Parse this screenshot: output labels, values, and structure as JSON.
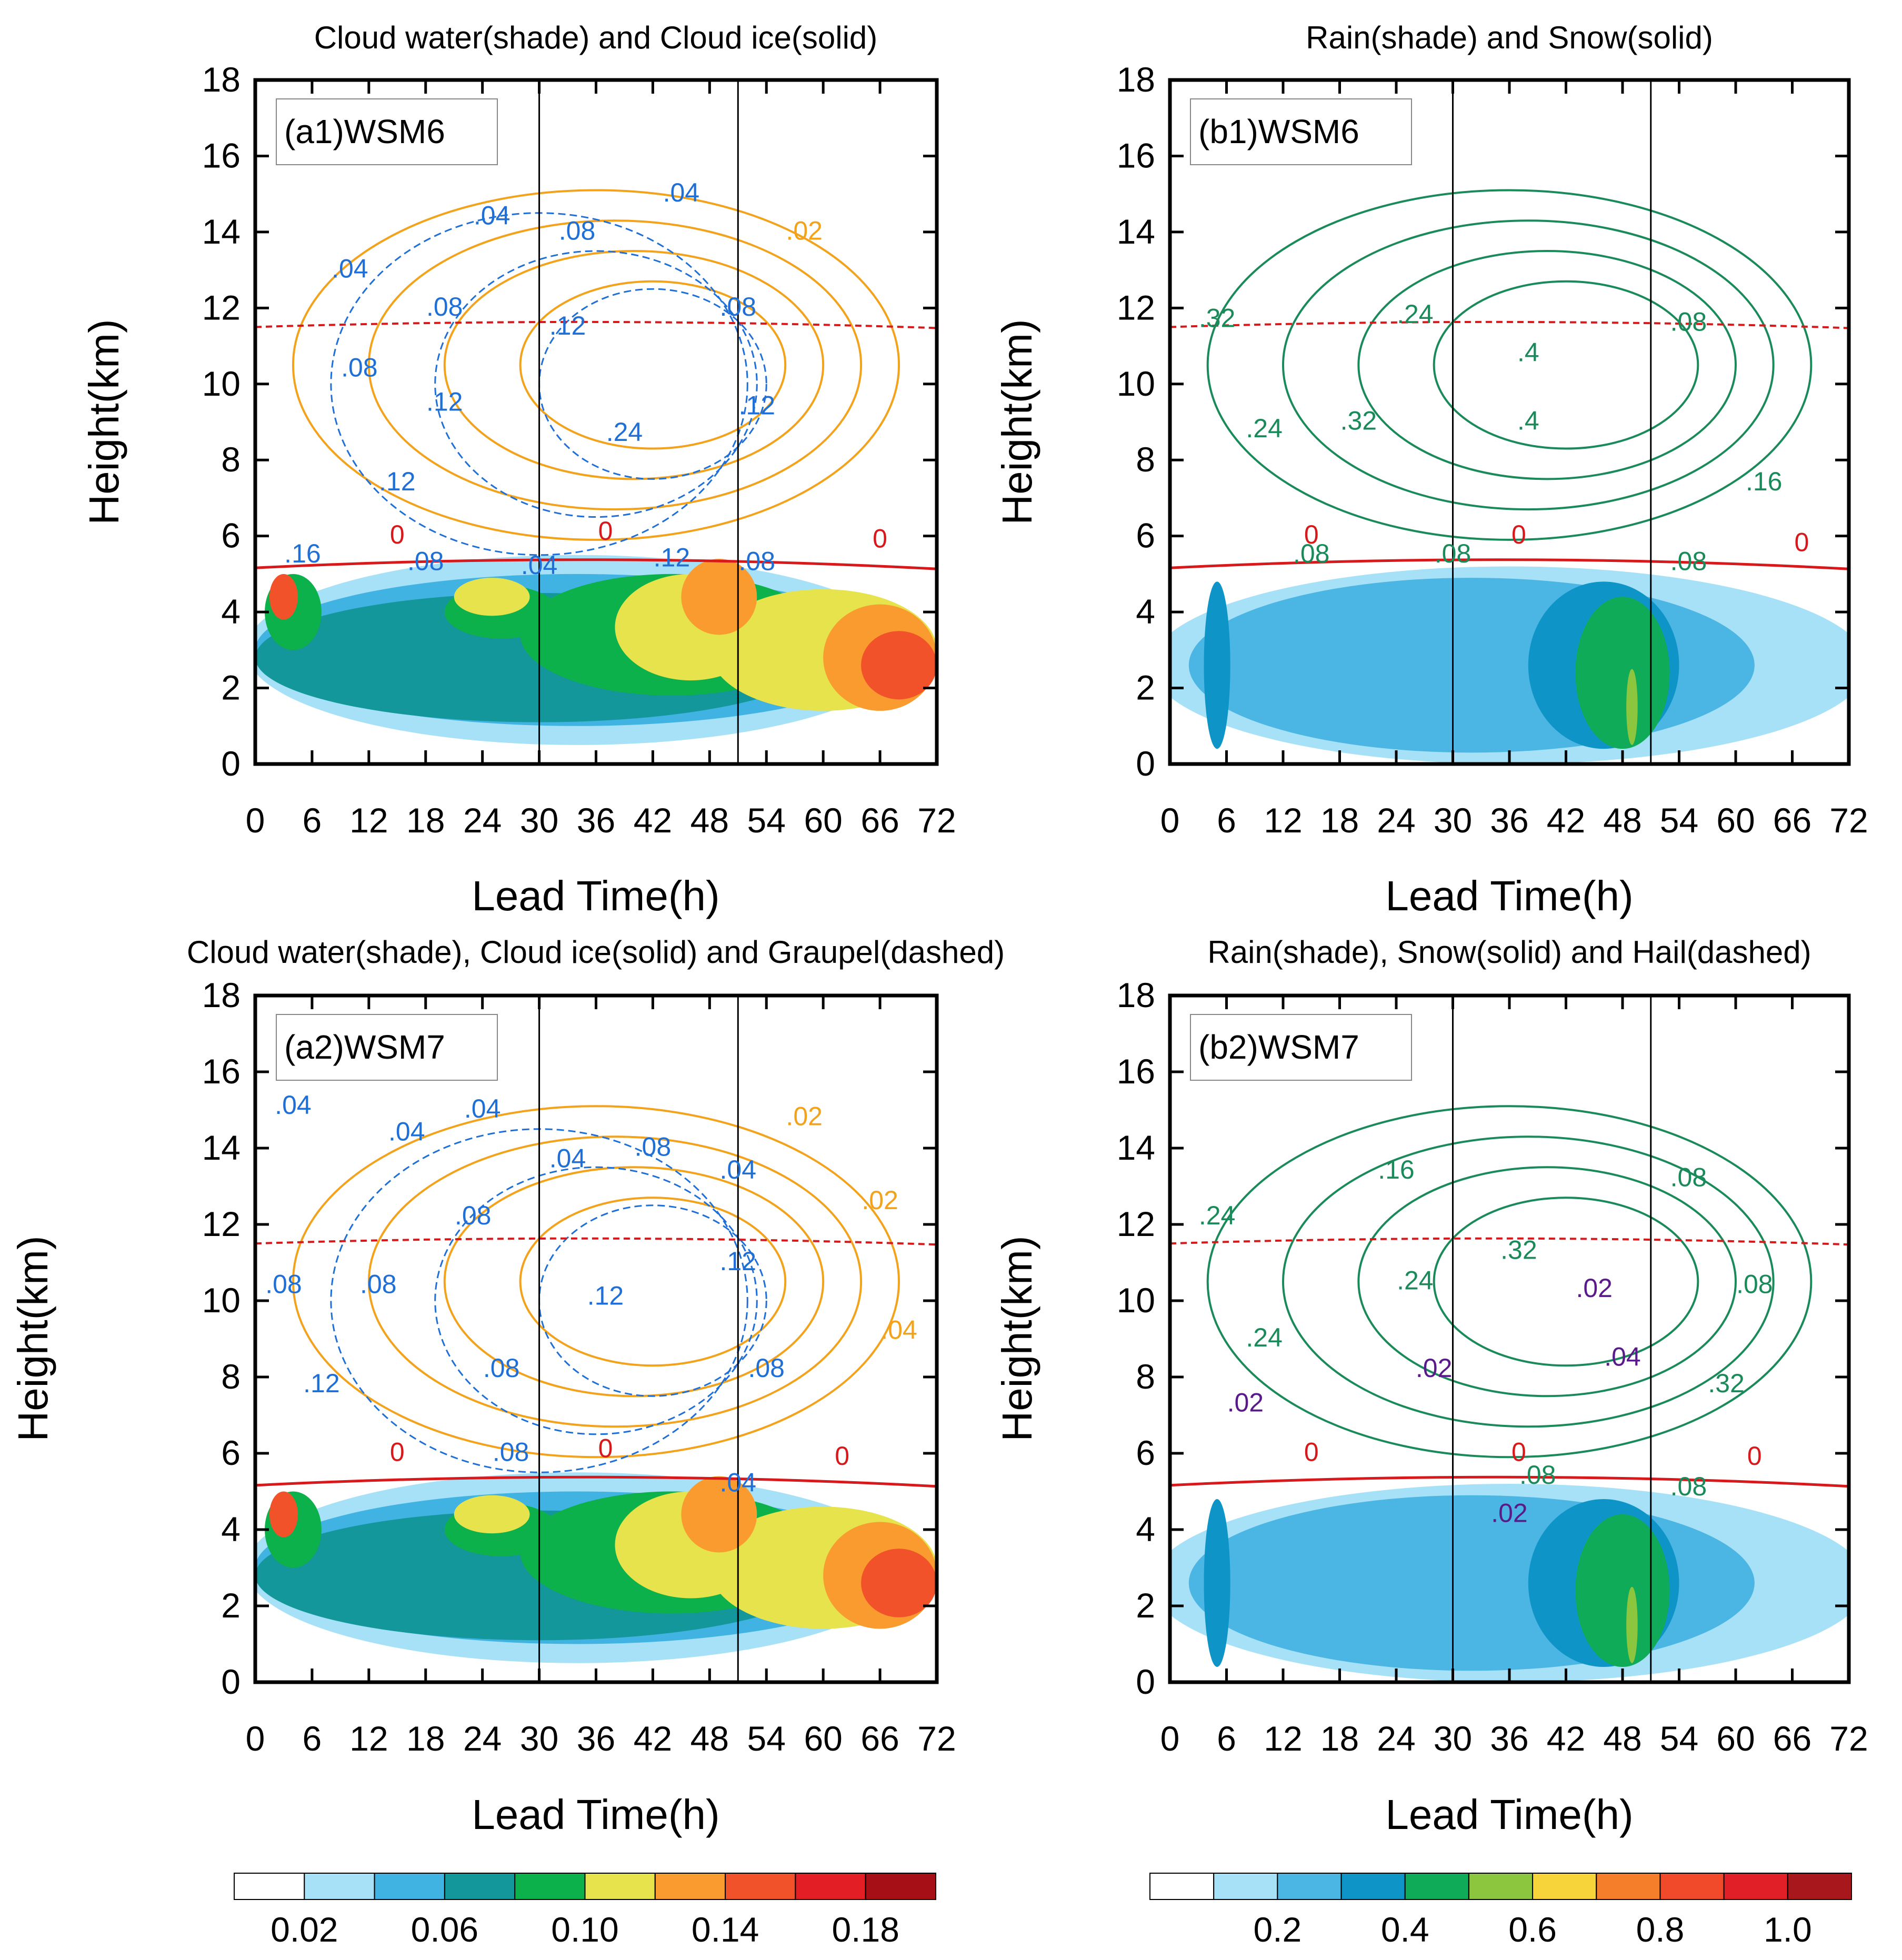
{
  "figure": {
    "colorbar_left": {
      "colors": [
        "#ffffff",
        "#a6e1f7",
        "#41b3e3",
        "#13979b",
        "#0db14b",
        "#e6e34c",
        "#f99b2f",
        "#f1522a",
        "#e31e24",
        "#a50f15"
      ],
      "labels": [
        "0.02",
        "0.06",
        "0.10",
        "0.14",
        "0.18"
      ]
    },
    "colorbar_right": {
      "colors": [
        "#ffffff",
        "#a6e1f7",
        "#4bb5e3",
        "#0e94c7",
        "#10ab59",
        "#8cc63f",
        "#f7d43a",
        "#f47e29",
        "#f04a2b",
        "#e01f26",
        "#a7171c"
      ],
      "labels": [
        "0.2",
        "0.4",
        "0.6",
        "0.8",
        "1.0"
      ]
    }
  },
  "chart_data": [
    {
      "type": "contour",
      "title": "Cloud water(shade) and Cloud ice(solid)",
      "panel_label": "(a1)WSM6",
      "xlabel": "Lead Time(h)",
      "ylabel": "Height(km)",
      "xlim": [
        0,
        72
      ],
      "ylim": [
        0,
        18
      ],
      "xticks": [
        "0",
        "6",
        "12",
        "18",
        "24",
        "30",
        "36",
        "42",
        "48",
        "54",
        "60",
        "66",
        "72"
      ],
      "yticks": [
        "0",
        "2",
        "4",
        "6",
        "8",
        "10",
        "12",
        "14",
        "16",
        "18"
      ],
      "vlines": [
        30,
        51
      ],
      "freezing_level_km": 5.3,
      "tropopause_level_km": 11.5,
      "freezing_label": "0",
      "contour_labels": [
        {
          "text": ".04",
          "x": 25,
          "y": 14.2,
          "color": "#1f6fd6"
        },
        {
          "text": ".04",
          "x": 10,
          "y": 12.8,
          "color": "#1f6fd6"
        },
        {
          "text": ".08",
          "x": 11,
          "y": 10.2,
          "color": "#1f6fd6"
        },
        {
          "text": ".08",
          "x": 20,
          "y": 11.8,
          "color": "#1f6fd6"
        },
        {
          "text": ".12",
          "x": 20,
          "y": 9.3,
          "color": "#1f6fd6"
        },
        {
          "text": ".12",
          "x": 15,
          "y": 7.2,
          "color": "#1f6fd6"
        },
        {
          "text": ".08",
          "x": 34,
          "y": 13.8,
          "color": "#1f6fd6"
        },
        {
          "text": ".12",
          "x": 33,
          "y": 11.3,
          "color": "#1f6fd6"
        },
        {
          "text": ".04",
          "x": 45,
          "y": 14.8,
          "color": "#1f6fd6"
        },
        {
          "text": ".08",
          "x": 51,
          "y": 11.8,
          "color": "#1f6fd6"
        },
        {
          "text": ".24",
          "x": 39,
          "y": 8.5,
          "color": "#1f6fd6"
        },
        {
          "text": ".12",
          "x": 53,
          "y": 9.2,
          "color": "#1f6fd6"
        },
        {
          "text": ".16",
          "x": 5,
          "y": 5.3,
          "color": "#1f6fd6"
        },
        {
          "text": ".08",
          "x": 18,
          "y": 5.1,
          "color": "#1f6fd6"
        },
        {
          "text": ".04",
          "x": 30,
          "y": 5.0,
          "color": "#1f6fd6"
        },
        {
          "text": ".12",
          "x": 44,
          "y": 5.2,
          "color": "#1f6fd6"
        },
        {
          "text": ".08",
          "x": 53,
          "y": 5.1,
          "color": "#1f6fd6"
        },
        {
          "text": ".02",
          "x": 58,
          "y": 13.8,
          "color": "#f2a21b"
        },
        {
          "text": "0",
          "x": 15,
          "y": 5.8,
          "color": "#d7191c"
        },
        {
          "text": "0",
          "x": 37,
          "y": 5.9,
          "color": "#d7191c"
        },
        {
          "text": "0",
          "x": 66,
          "y": 5.7,
          "color": "#d7191c"
        }
      ]
    },
    {
      "type": "contour",
      "title": "Rain(shade) and Snow(solid)",
      "panel_label": "(b1)WSM6",
      "xlabel": "Lead Time(h)",
      "ylabel": "Height(km)",
      "xlim": [
        0,
        72
      ],
      "ylim": [
        0,
        18
      ],
      "xticks": [
        "0",
        "6",
        "12",
        "18",
        "24",
        "30",
        "36",
        "42",
        "48",
        "54",
        "60",
        "66",
        "72"
      ],
      "yticks": [
        "0",
        "2",
        "4",
        "6",
        "8",
        "10",
        "12",
        "14",
        "16",
        "18"
      ],
      "vlines": [
        30,
        51
      ],
      "freezing_level_km": 5.3,
      "tropopause_level_km": 11.5,
      "freezing_label": "0",
      "contour_labels": [
        {
          "text": ".32",
          "x": 5,
          "y": 11.5,
          "color": "#1a8a5a"
        },
        {
          "text": ".24",
          "x": 10,
          "y": 8.6,
          "color": "#1a8a5a"
        },
        {
          "text": ".24",
          "x": 26,
          "y": 11.6,
          "color": "#1a8a5a"
        },
        {
          "text": ".32",
          "x": 20,
          "y": 8.8,
          "color": "#1a8a5a"
        },
        {
          "text": ".4",
          "x": 38,
          "y": 10.6,
          "color": "#1a8a5a"
        },
        {
          "text": ".4",
          "x": 38,
          "y": 8.8,
          "color": "#1a8a5a"
        },
        {
          "text": ".08",
          "x": 55,
          "y": 11.4,
          "color": "#1a8a5a"
        },
        {
          "text": ".16",
          "x": 63,
          "y": 7.2,
          "color": "#1a8a5a"
        },
        {
          "text": ".08",
          "x": 15,
          "y": 5.3,
          "color": "#1a8a5a"
        },
        {
          "text": ".08",
          "x": 30,
          "y": 5.3,
          "color": "#1a8a5a"
        },
        {
          "text": ".08",
          "x": 55,
          "y": 5.1,
          "color": "#1a8a5a"
        },
        {
          "text": "0",
          "x": 15,
          "y": 5.8,
          "color": "#d7191c"
        },
        {
          "text": "0",
          "x": 37,
          "y": 5.8,
          "color": "#d7191c"
        },
        {
          "text": "0",
          "x": 67,
          "y": 5.6,
          "color": "#d7191c"
        }
      ]
    },
    {
      "type": "contour",
      "title": "Cloud water(shade), Cloud ice(solid) and Graupel(dashed)",
      "panel_label": "(a2)WSM7",
      "xlabel": "Lead Time(h)",
      "ylabel": "Height(km)",
      "xlim": [
        0,
        72
      ],
      "ylim": [
        0,
        18
      ],
      "xticks": [
        "0",
        "6",
        "12",
        "18",
        "24",
        "30",
        "36",
        "42",
        "48",
        "54",
        "60",
        "66",
        "72"
      ],
      "yticks": [
        "0",
        "2",
        "4",
        "6",
        "8",
        "10",
        "12",
        "14",
        "16",
        "18"
      ],
      "vlines": [
        30,
        51
      ],
      "freezing_level_km": 5.3,
      "tropopause_level_km": 11.5,
      "freezing_label": "0",
      "contour_labels": [
        {
          "text": ".04",
          "x": 4,
          "y": 14.9,
          "color": "#1f6fd6"
        },
        {
          "text": ".04",
          "x": 16,
          "y": 14.2,
          "color": "#1f6fd6"
        },
        {
          "text": ".04",
          "x": 24,
          "y": 14.8,
          "color": "#1f6fd6"
        },
        {
          "text": ".08",
          "x": 3,
          "y": 10.2,
          "color": "#1f6fd6"
        },
        {
          "text": ".08",
          "x": 13,
          "y": 10.2,
          "color": "#1f6fd6"
        },
        {
          "text": ".08",
          "x": 23,
          "y": 12.0,
          "color": "#1f6fd6"
        },
        {
          "text": ".04",
          "x": 33,
          "y": 13.5,
          "color": "#1f6fd6"
        },
        {
          "text": ".08",
          "x": 42,
          "y": 13.8,
          "color": "#1f6fd6"
        },
        {
          "text": ".04",
          "x": 51,
          "y": 13.2,
          "color": "#1f6fd6"
        },
        {
          "text": ".12",
          "x": 51,
          "y": 10.8,
          "color": "#1f6fd6"
        },
        {
          "text": ".12",
          "x": 37,
          "y": 9.9,
          "color": "#1f6fd6"
        },
        {
          "text": ".08",
          "x": 26,
          "y": 8.0,
          "color": "#1f6fd6"
        },
        {
          "text": ".08",
          "x": 54,
          "y": 8.0,
          "color": "#1f6fd6"
        },
        {
          "text": ".12",
          "x": 7,
          "y": 7.6,
          "color": "#1f6fd6"
        },
        {
          "text": ".08",
          "x": 27,
          "y": 5.8,
          "color": "#1f6fd6"
        },
        {
          "text": ".04",
          "x": 51,
          "y": 5.0,
          "color": "#1f6fd6"
        },
        {
          "text": ".02",
          "x": 58,
          "y": 14.6,
          "color": "#f2a21b"
        },
        {
          "text": ".02",
          "x": 66,
          "y": 12.4,
          "color": "#f2a21b"
        },
        {
          "text": ".04",
          "x": 68,
          "y": 9.0,
          "color": "#f2a21b"
        },
        {
          "text": "0",
          "x": 15,
          "y": 5.8,
          "color": "#d7191c"
        },
        {
          "text": "0",
          "x": 37,
          "y": 5.9,
          "color": "#d7191c"
        },
        {
          "text": "0",
          "x": 62,
          "y": 5.7,
          "color": "#d7191c"
        }
      ]
    },
    {
      "type": "contour",
      "title": "Rain(shade), Snow(solid) and Hail(dashed)",
      "panel_label": "(b2)WSM7",
      "xlabel": "Lead Time(h)",
      "ylabel": "Height(km)",
      "xlim": [
        0,
        72
      ],
      "ylim": [
        0,
        18
      ],
      "xticks": [
        "0",
        "6",
        "12",
        "18",
        "24",
        "30",
        "36",
        "42",
        "48",
        "54",
        "60",
        "66",
        "72"
      ],
      "yticks": [
        "0",
        "2",
        "4",
        "6",
        "8",
        "10",
        "12",
        "14",
        "16",
        "18"
      ],
      "vlines": [
        30,
        51
      ],
      "freezing_level_km": 5.3,
      "tropopause_level_km": 11.5,
      "freezing_label": "0",
      "contour_labels": [
        {
          "text": ".24",
          "x": 5,
          "y": 12.0,
          "color": "#1a8a5a"
        },
        {
          "text": ".16",
          "x": 24,
          "y": 13.2,
          "color": "#1a8a5a"
        },
        {
          "text": ".24",
          "x": 10,
          "y": 8.8,
          "color": "#1a8a5a"
        },
        {
          "text": ".24",
          "x": 26,
          "y": 10.3,
          "color": "#1a8a5a"
        },
        {
          "text": ".32",
          "x": 37,
          "y": 11.1,
          "color": "#1a8a5a"
        },
        {
          "text": ".08",
          "x": 55,
          "y": 13.0,
          "color": "#1a8a5a"
        },
        {
          "text": ".08",
          "x": 62,
          "y": 10.2,
          "color": "#1a8a5a"
        },
        {
          "text": ".32",
          "x": 59,
          "y": 7.6,
          "color": "#1a8a5a"
        },
        {
          "text": ".08",
          "x": 39,
          "y": 5.2,
          "color": "#1a8a5a"
        },
        {
          "text": ".08",
          "x": 55,
          "y": 4.9,
          "color": "#1a8a5a"
        },
        {
          "text": ".02",
          "x": 45,
          "y": 10.1,
          "color": "#5a1a8a"
        },
        {
          "text": ".02",
          "x": 8,
          "y": 7.1,
          "color": "#5a1a8a"
        },
        {
          "text": ".02",
          "x": 28,
          "y": 8.0,
          "color": "#5a1a8a"
        },
        {
          "text": ".04",
          "x": 48,
          "y": 8.3,
          "color": "#5a1a8a"
        },
        {
          "text": ".02",
          "x": 36,
          "y": 4.2,
          "color": "#5a1a8a"
        },
        {
          "text": "0",
          "x": 15,
          "y": 5.8,
          "color": "#d7191c"
        },
        {
          "text": "0",
          "x": 37,
          "y": 5.8,
          "color": "#d7191c"
        },
        {
          "text": "0",
          "x": 62,
          "y": 5.7,
          "color": "#d7191c"
        }
      ]
    }
  ]
}
